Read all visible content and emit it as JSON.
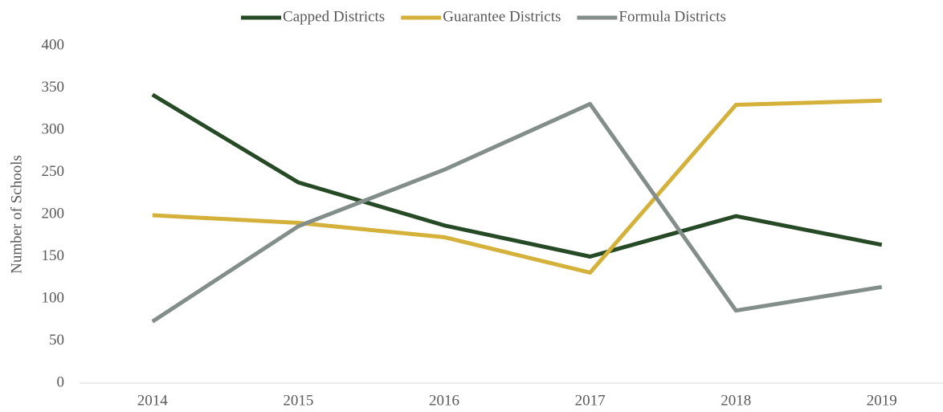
{
  "chart_data": {
    "type": "line",
    "y_label": "Number of Schools",
    "categories": [
      "2014",
      "2015",
      "2016",
      "2017",
      "2018",
      "2019"
    ],
    "series": [
      {
        "name": "Capped Districts",
        "color": "#264a25",
        "values": [
          342,
          238,
          187,
          150,
          198,
          164
        ]
      },
      {
        "name": "Guarantee Districts",
        "color": "#d4b13a",
        "values": [
          199,
          190,
          173,
          131,
          330,
          335
        ]
      },
      {
        "name": "Formula Districts",
        "color": "#838e8a",
        "values": [
          73,
          186,
          253,
          331,
          86,
          114
        ]
      }
    ],
    "ylim": [
      0,
      400
    ],
    "yticks": [
      0,
      50,
      100,
      150,
      200,
      250,
      300,
      350,
      400
    ],
    "grid": false,
    "legend": "top"
  }
}
